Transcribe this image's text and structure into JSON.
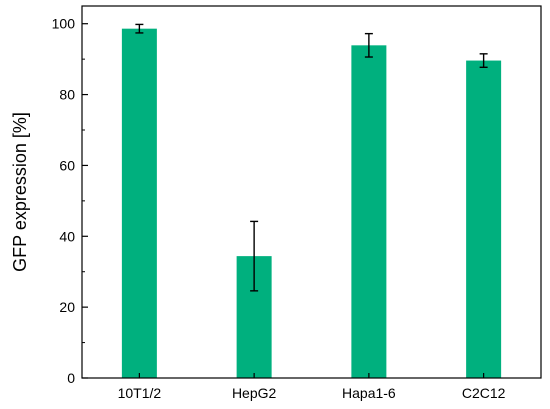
{
  "chart_data": {
    "type": "bar",
    "categories": [
      "10T1/2",
      "HepG2",
      "Hapa1-6",
      "C2C12"
    ],
    "values": [
      98.6,
      34.4,
      93.9,
      89.6
    ],
    "errors": [
      1.2,
      9.8,
      3.3,
      1.9
    ],
    "ylabel": "GFP expression [%]",
    "xlabel": "",
    "ylim": [
      0,
      105
    ],
    "yticks": [
      0,
      20,
      40,
      60,
      80,
      100
    ],
    "grid": false,
    "bar_color": "#00b07e",
    "axis_color": "#000000"
  }
}
